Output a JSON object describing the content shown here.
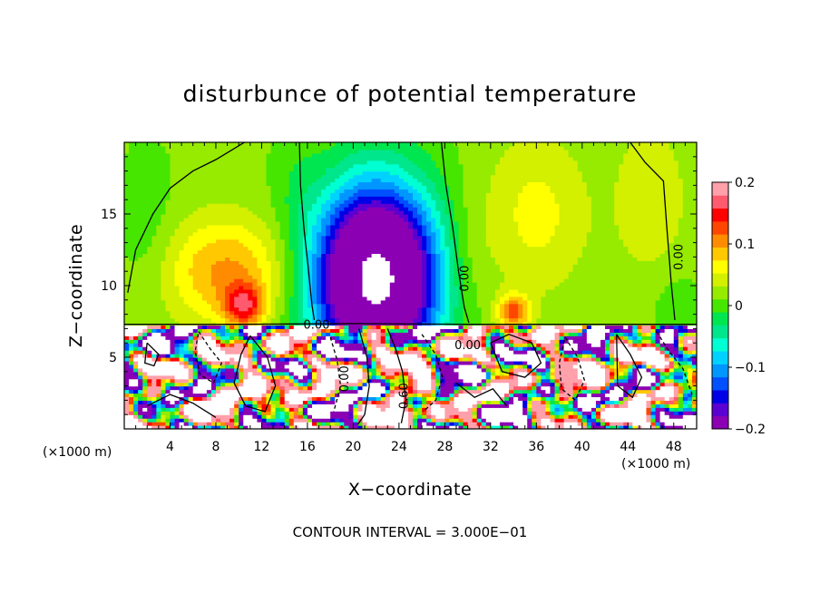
{
  "chart_data": {
    "type": "heatmap",
    "title": "disturbunce of potential temperature",
    "xlabel": "X−coordinate",
    "ylabel": "Z−coordinate",
    "xlim": [
      0,
      50
    ],
    "ylim": [
      0,
      20
    ],
    "x_unit_left": "(×1000 m)",
    "x_unit_right": "(×1000 m)",
    "x_ticks": [
      4,
      8,
      12,
      16,
      20,
      24,
      28,
      32,
      36,
      40,
      44,
      48
    ],
    "y_ticks": [
      5,
      10,
      15
    ],
    "colorbar": {
      "range": [
        -0.2,
        0.2
      ],
      "ticks": [
        {
          "value": 0.2,
          "label": "0.2"
        },
        {
          "value": 0.1,
          "label": "0.1"
        },
        {
          "value": 0,
          "label": "0"
        },
        {
          "value": -0.1,
          "label": "−0.1"
        },
        {
          "value": -0.2,
          "label": "−0.2"
        }
      ],
      "colors": [
        "#8c00b4",
        "#5a00d2",
        "#0000e6",
        "#0050ff",
        "#0096ff",
        "#00d2ff",
        "#00ffd2",
        "#00e68c",
        "#00e650",
        "#46e600",
        "#96eb00",
        "#d2f000",
        "#ffff00",
        "#ffc800",
        "#ff8c00",
        "#ff4600",
        "#ff0000",
        "#ff5a6e",
        "#ffa0aa"
      ]
    },
    "contour_labels": [
      {
        "text": "0.00",
        "x": 16.8,
        "z": 7.2,
        "angle": 0
      },
      {
        "text": "0.00",
        "x": 29.8,
        "z": 10.5,
        "angle": -90
      },
      {
        "text": "0.00",
        "x": 48.5,
        "z": 12.0,
        "angle": -90
      },
      {
        "text": "0.00",
        "x": 30.0,
        "z": 5.8,
        "angle": 0
      },
      {
        "text": "0.00",
        "x": 19.3,
        "z": 3.5,
        "angle": -90
      },
      {
        "text": "0.60",
        "x": 24.5,
        "z": 2.3,
        "angle": -90
      }
    ],
    "annotation": "CONTOUR INTERVAL = 3.000E−01"
  }
}
